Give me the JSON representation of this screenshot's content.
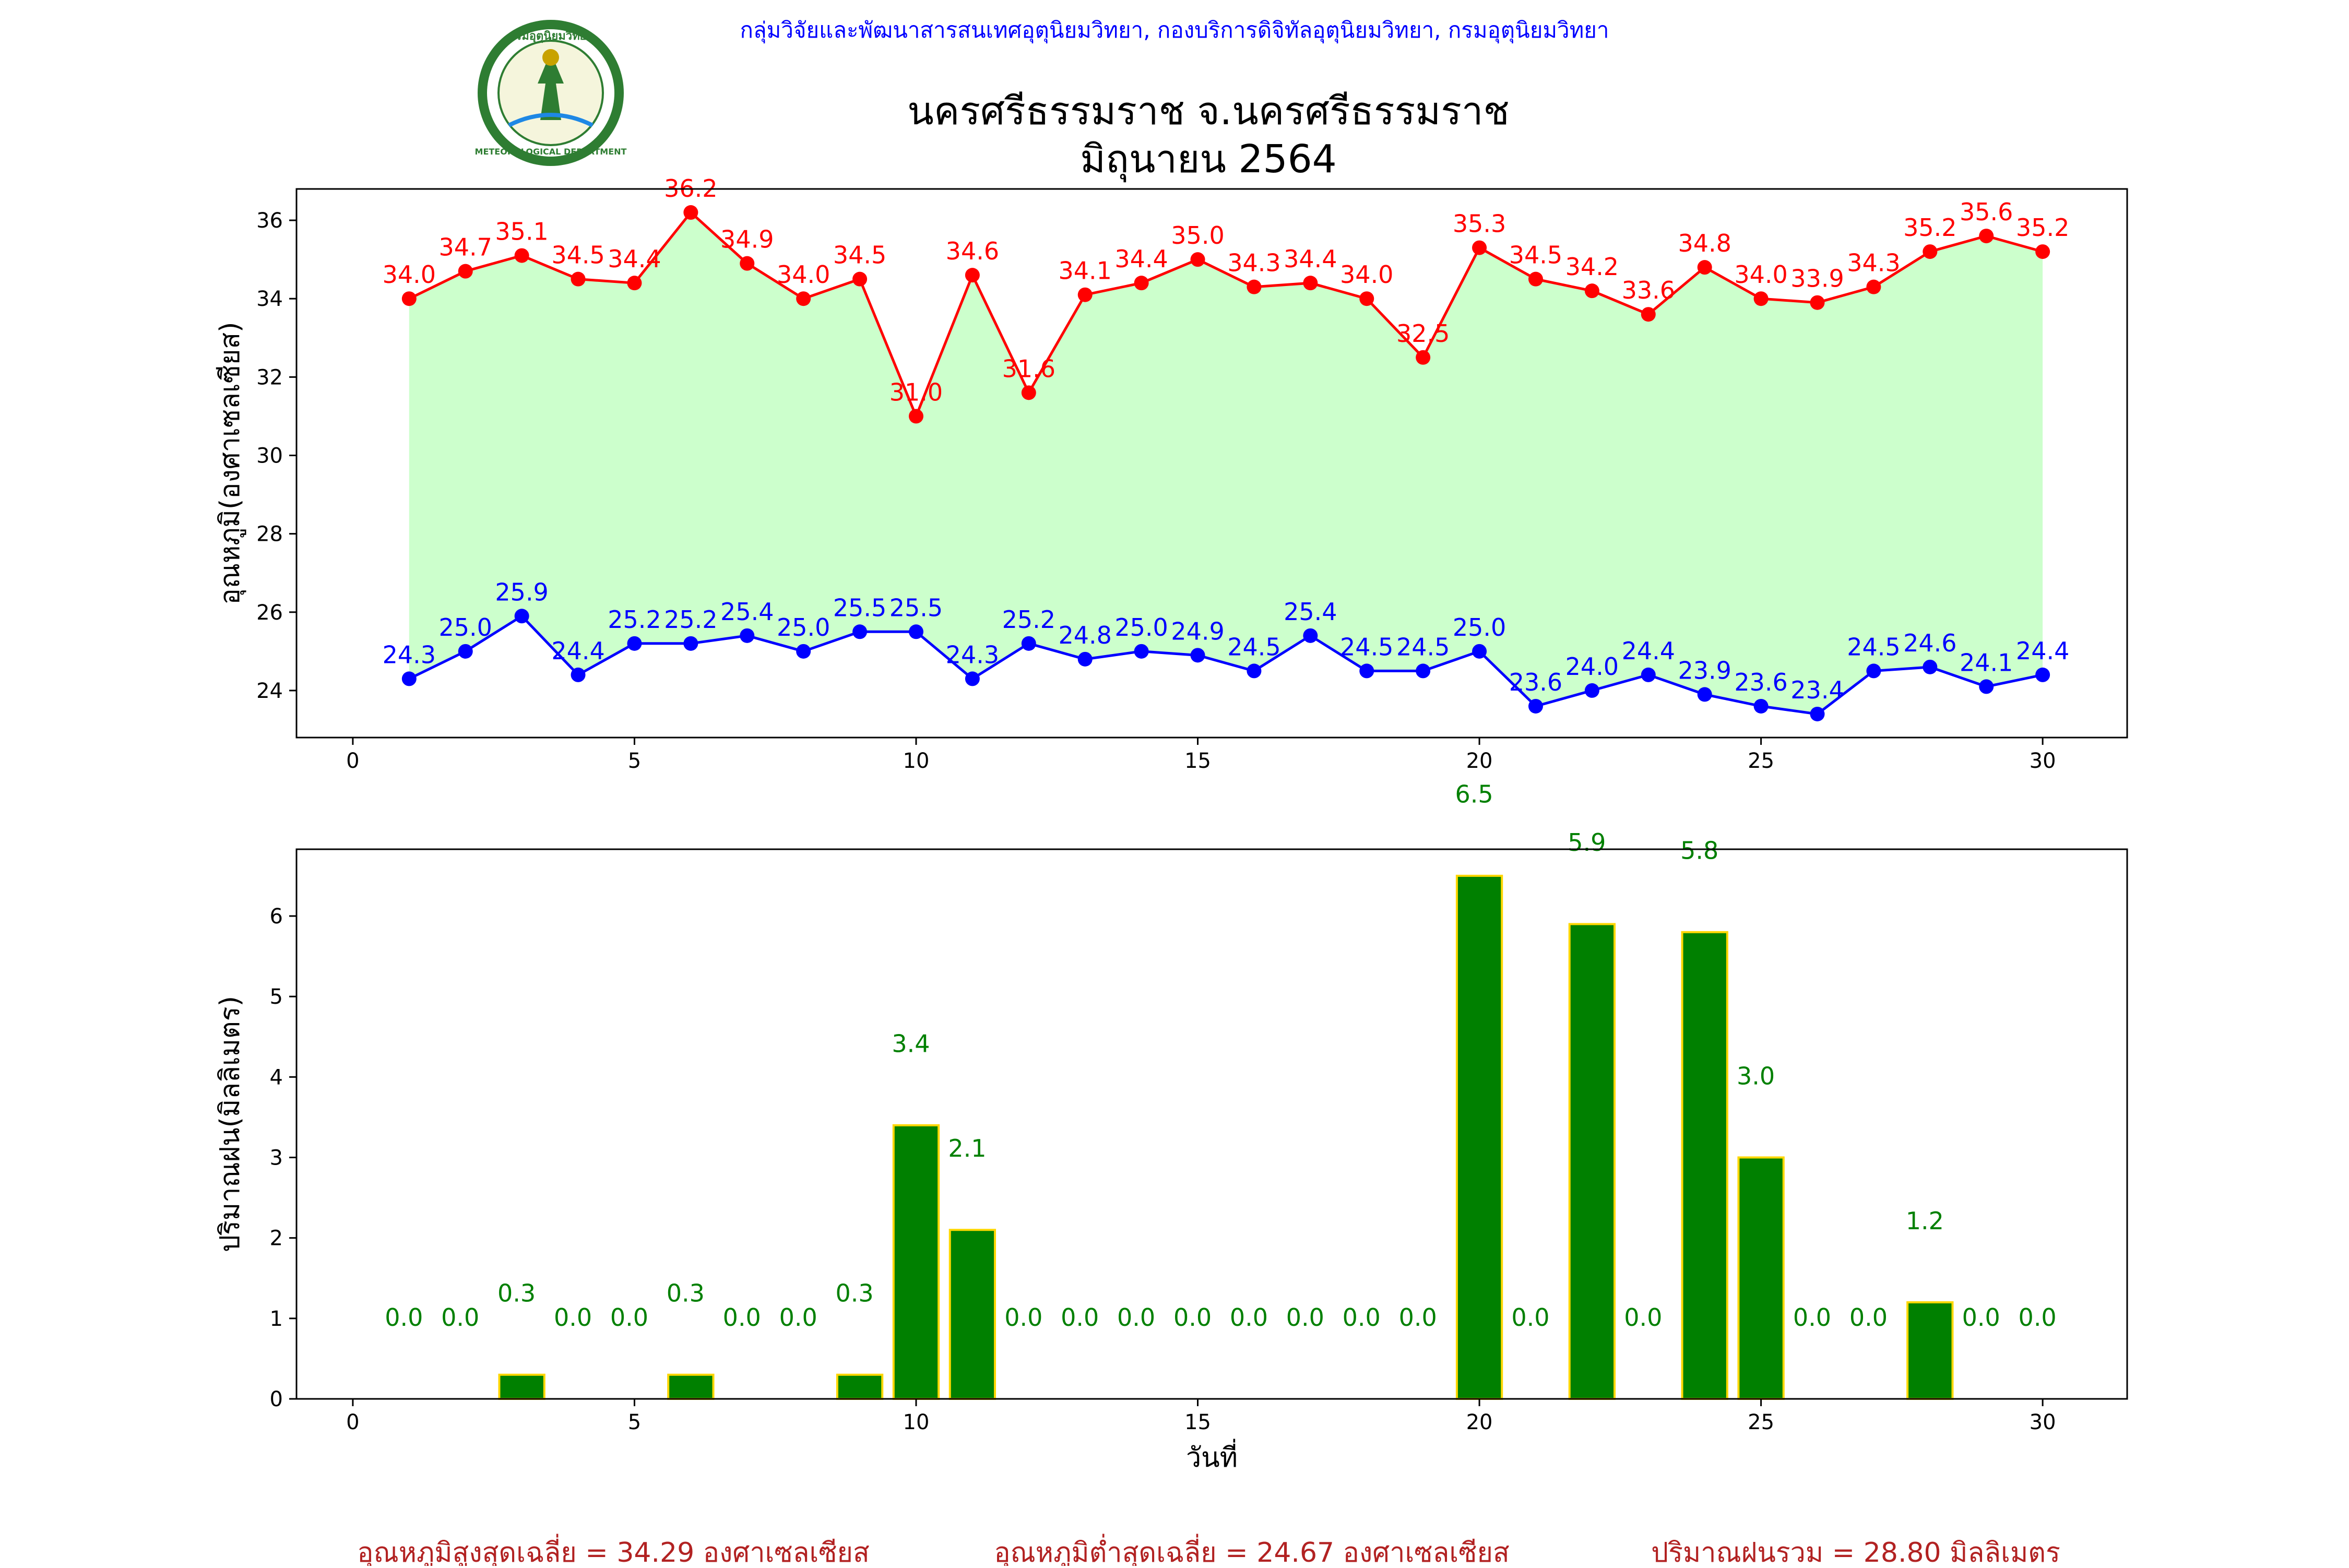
{
  "header": {
    "agency": "กลุ่มวิจัยและพัฒนาสารสนเทศอุตุนิยมวิทยา, กองบริการดิจิทัลอุตุนิยมวิทยา, กรมอุตุนิยมวิทยา",
    "title_line1": "นครศรีธรรมราช จ.นครศรีธรรมราช",
    "title_line2": "มิถุนายน 2564",
    "logo": {
      "icon": "meteorological-department-seal",
      "text_top": "กรมอุตุนิยมวิทยา",
      "text_bottom": "METEOROLOGICAL DEPARTMENT"
    }
  },
  "chart_data": [
    {
      "type": "line",
      "title": "นครศรีธรรมราช จ.นครศรีธรรมราช มิถุนายน 2564",
      "xlabel": "",
      "ylabel": "อุณหภูมิ(องศาเซลเซียส)",
      "xlim": [
        -1,
        31.5
      ],
      "ylim": [
        22.8,
        36.8
      ],
      "xticks": [
        0,
        5,
        10,
        15,
        20,
        25,
        30
      ],
      "yticks": [
        24,
        26,
        28,
        30,
        32,
        34,
        36
      ],
      "x": [
        1,
        2,
        3,
        4,
        5,
        6,
        7,
        8,
        9,
        10,
        11,
        12,
        13,
        14,
        15,
        16,
        17,
        18,
        19,
        20,
        21,
        22,
        23,
        24,
        25,
        26,
        27,
        28,
        29,
        30
      ],
      "series": [
        {
          "key": "max",
          "color": "#ff0000",
          "values": [
            34.0,
            34.7,
            35.1,
            34.5,
            34.4,
            36.2,
            34.9,
            34.0,
            34.5,
            31.0,
            34.6,
            31.6,
            34.1,
            34.4,
            35.0,
            34.3,
            34.4,
            34.0,
            32.5,
            35.3,
            34.5,
            34.2,
            33.6,
            34.8,
            34.0,
            33.9,
            34.3,
            35.2,
            35.6,
            35.2
          ]
        },
        {
          "key": "min",
          "color": "#0000ff",
          "values": [
            24.3,
            25.0,
            25.9,
            24.4,
            25.2,
            25.2,
            25.4,
            25.0,
            25.5,
            25.5,
            24.3,
            25.2,
            24.8,
            25.0,
            24.9,
            24.5,
            25.4,
            24.5,
            24.5,
            25.0,
            23.6,
            24.0,
            24.4,
            23.9,
            23.6,
            23.4,
            24.5,
            24.6,
            24.1,
            24.4
          ]
        }
      ],
      "fill_color": "#ccffcc",
      "grid": false
    },
    {
      "type": "bar",
      "xlabel": "วันที่",
      "ylabel": "ปริมาณฝน(มิลลิเมตร)",
      "xlim": [
        -1,
        31.5
      ],
      "ylim": [
        0,
        6.83
      ],
      "xticks": [
        0,
        5,
        10,
        15,
        20,
        25,
        30
      ],
      "yticks": [
        0,
        1,
        2,
        3,
        4,
        5,
        6
      ],
      "x": [
        1,
        2,
        3,
        4,
        5,
        6,
        7,
        8,
        9,
        10,
        11,
        12,
        13,
        14,
        15,
        16,
        17,
        18,
        19,
        20,
        21,
        22,
        23,
        24,
        25,
        26,
        27,
        28,
        29,
        30
      ],
      "values": [
        0.0,
        0.0,
        0.3,
        0.0,
        0.0,
        0.3,
        0.0,
        0.0,
        0.3,
        3.4,
        2.1,
        0.0,
        0.0,
        0.0,
        0.0,
        0.0,
        0.0,
        0.0,
        0.0,
        6.5,
        0.0,
        5.9,
        0.0,
        5.8,
        3.0,
        0.0,
        0.0,
        1.2,
        0.0,
        0.0
      ],
      "bar_color": "#008000",
      "edge_color": "#ffd700",
      "label_color": "#008000",
      "grid": false
    }
  ],
  "summary": {
    "max_avg": "อุณหภูมิสูงสุดเฉลี่ย = 34.29 องศาเซลเซียส",
    "min_avg": "อุณหภูมิต่ำสุดเฉลี่ย = 24.67 องศาเซลเซียส",
    "rain_total": "ปริมาณฝนรวม = 28.80 มิลลิเมตร"
  },
  "colors": {
    "header_text": "#0000ff",
    "summary_text": "#b22222"
  }
}
